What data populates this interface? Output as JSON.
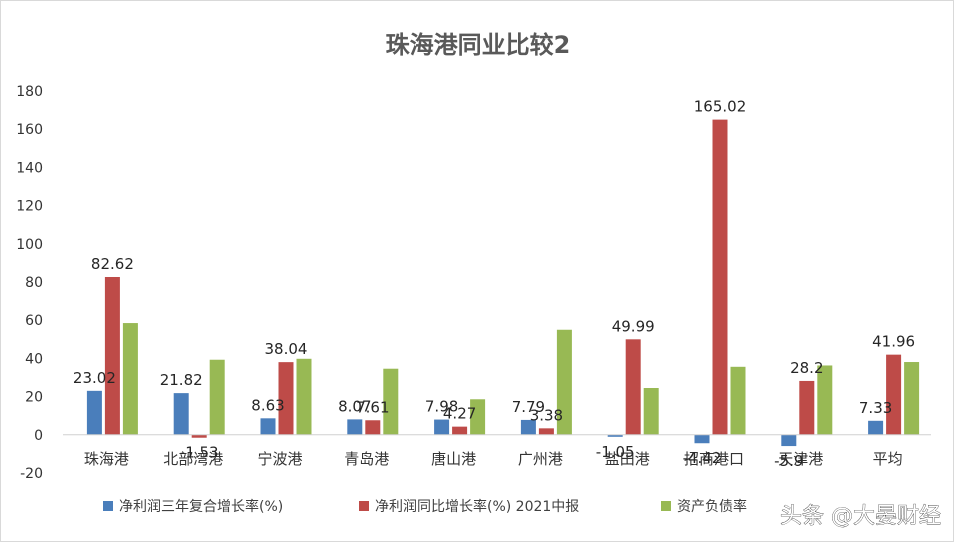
{
  "chart_data": {
    "type": "bar",
    "title": "珠海港同业比较2",
    "categories": [
      "珠海港",
      "北部湾港",
      "宁波港",
      "青岛港",
      "唐山港",
      "广州港",
      "盐田港",
      "招商港口",
      "天津港",
      "平均"
    ],
    "series": [
      {
        "name": "净利润三年复合增长率(%)",
        "color": "#4a7ebb",
        "values": [
          23.02,
          21.82,
          8.63,
          8.07,
          7.98,
          7.79,
          -1.05,
          -4.42,
          -5.9,
          7.33
        ],
        "labels": [
          "23.02",
          "21.82",
          "8.63",
          "8.07",
          "7.98",
          "7.79",
          "-1.05",
          "-4.42",
          "-5.9",
          "7.33"
        ]
      },
      {
        "name": "净利润同比增长率(%) 2021中报",
        "color": "#be4b48",
        "values": [
          82.62,
          -1.53,
          38.04,
          7.61,
          4.27,
          3.38,
          49.99,
          165.02,
          28.2,
          41.96
        ],
        "labels": [
          "82.62",
          "-1.53",
          "38.04",
          "7.61",
          "4.27",
          "3.38",
          "49.99",
          "165.02",
          "28.2",
          "41.96"
        ]
      },
      {
        "name": "资产负债率",
        "color": "#98b954",
        "values": [
          58.5,
          39.3,
          39.8,
          34.6,
          18.6,
          55.0,
          24.5,
          35.6,
          36.3,
          38.1
        ]
      }
    ],
    "ylim": [
      -20,
      180
    ],
    "yticks": [
      -20,
      0,
      20,
      40,
      60,
      80,
      100,
      120,
      140,
      160,
      180
    ],
    "grid": false,
    "legend_position": "bottom"
  },
  "watermark": "头条 @大晏财经"
}
